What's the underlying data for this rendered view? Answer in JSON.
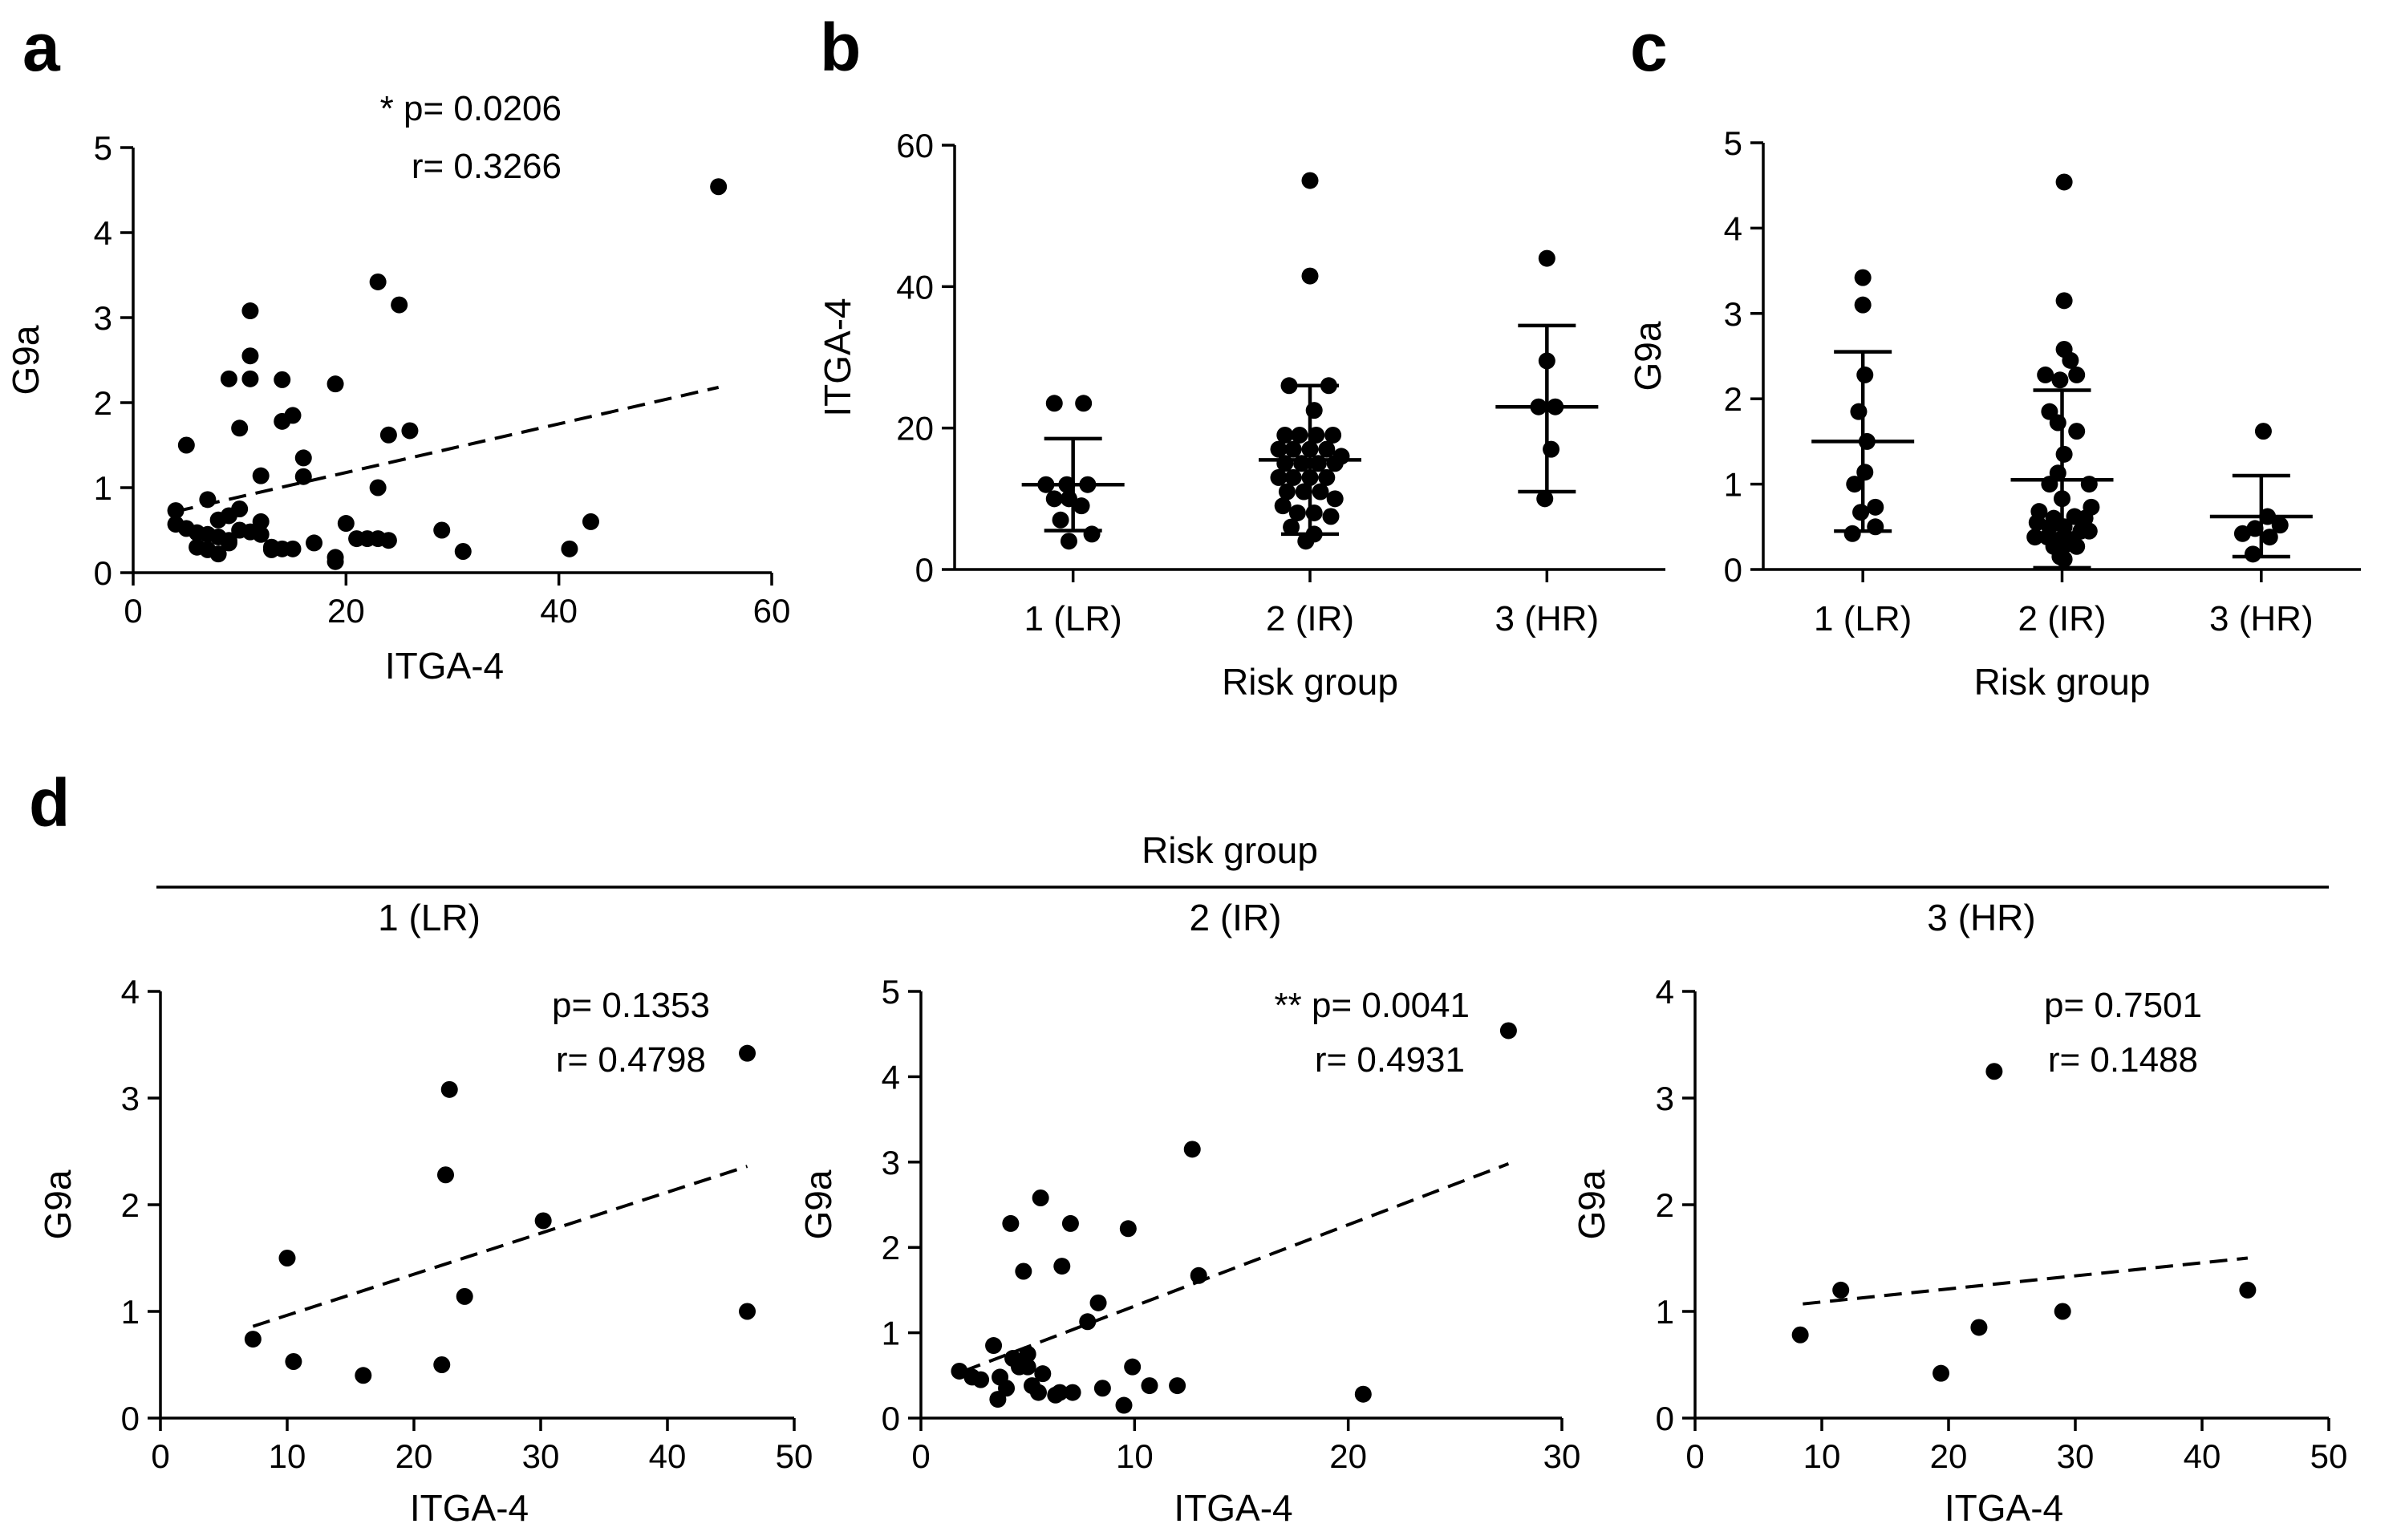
{
  "panels": [
    {
      "letter": "a"
    },
    {
      "letter": "b"
    },
    {
      "letter": "c"
    },
    {
      "letter": "d"
    }
  ],
  "d_header": {
    "title": "Risk group",
    "groups": [
      "1 (LR)",
      "2 (IR)",
      "3 (HR)"
    ]
  },
  "chart_data": [
    {
      "id": "a",
      "type": "scatter",
      "xlabel": "ITGA-4",
      "ylabel": "G9a",
      "xlim": [
        0,
        60
      ],
      "ylim": [
        0,
        5
      ],
      "xticks": [
        0,
        20,
        40,
        60
      ],
      "yticks": [
        0,
        1,
        2,
        3,
        4,
        5
      ],
      "annotation": [
        "* p= 0.0206",
        "r= 0.3266"
      ],
      "fit": {
        "x": [
          4,
          55
        ],
        "y": [
          0.72,
          2.18
        ]
      },
      "points": [
        [
          4,
          0.73
        ],
        [
          4,
          0.57
        ],
        [
          5,
          0.52
        ],
        [
          5,
          1.5
        ],
        [
          6,
          0.47
        ],
        [
          6,
          0.3
        ],
        [
          7,
          0.27
        ],
        [
          7,
          0.86
        ],
        [
          7,
          0.45
        ],
        [
          8,
          0.42
        ],
        [
          8,
          0.22
        ],
        [
          8,
          0.62
        ],
        [
          9,
          0.35
        ],
        [
          9,
          2.28
        ],
        [
          9,
          0.67
        ],
        [
          9,
          0.38
        ],
        [
          10,
          1.7
        ],
        [
          10,
          0.5
        ],
        [
          10,
          0.75
        ],
        [
          11,
          0.48
        ],
        [
          11,
          3.08
        ],
        [
          11,
          2.55
        ],
        [
          11,
          2.28
        ],
        [
          12,
          0.6
        ],
        [
          12,
          1.14
        ],
        [
          12,
          0.45
        ],
        [
          13,
          0.3
        ],
        [
          13,
          0.27
        ],
        [
          14,
          1.78
        ],
        [
          14,
          2.27
        ],
        [
          14,
          0.28
        ],
        [
          15,
          1.85
        ],
        [
          15,
          0.28
        ],
        [
          16,
          1.13
        ],
        [
          16,
          1.35
        ],
        [
          17,
          0.35
        ],
        [
          19,
          2.22
        ],
        [
          19,
          0.18
        ],
        [
          19,
          0.13
        ],
        [
          20,
          0.58
        ],
        [
          21,
          0.4
        ],
        [
          22,
          0.4
        ],
        [
          23,
          3.42
        ],
        [
          23,
          1.0
        ],
        [
          23,
          0.4
        ],
        [
          24,
          1.62
        ],
        [
          24,
          0.38
        ],
        [
          25,
          3.15
        ],
        [
          26,
          1.67
        ],
        [
          29,
          0.5
        ],
        [
          31,
          0.25
        ],
        [
          41,
          0.28
        ],
        [
          43,
          0.6
        ],
        [
          55,
          4.54
        ]
      ]
    },
    {
      "id": "b",
      "type": "dot-plot",
      "xlabel": "Risk group",
      "ylabel": "ITGA-4",
      "categories": [
        "1 (LR)",
        "2 (IR)",
        "3 (HR)"
      ],
      "ylim": [
        0,
        60
      ],
      "yticks": [
        0,
        20,
        40,
        60
      ],
      "summary": [
        {
          "mean": 12,
          "low": 5.5,
          "high": 18.5
        },
        {
          "mean": 15.5,
          "low": 5,
          "high": 26
        },
        {
          "mean": 23,
          "low": 11,
          "high": 34.5
        }
      ],
      "groups": [
        [
          [
            -0.9,
            23.5
          ],
          [
            0.5,
            23.5
          ],
          [
            -1.3,
            12
          ],
          [
            -0.3,
            12
          ],
          [
            0.7,
            12
          ],
          [
            -0.9,
            10
          ],
          [
            -0.2,
            10
          ],
          [
            0.4,
            9
          ],
          [
            -0.6,
            7
          ],
          [
            0.9,
            5
          ],
          [
            -0.2,
            4
          ]
        ],
        [
          [
            0,
            55
          ],
          [
            0,
            41.5
          ],
          [
            -1,
            26
          ],
          [
            0.9,
            26
          ],
          [
            0.2,
            22.5
          ],
          [
            -1.2,
            19
          ],
          [
            -0.5,
            19
          ],
          [
            0.3,
            19
          ],
          [
            1.1,
            19
          ],
          [
            -1.5,
            17
          ],
          [
            -0.8,
            17
          ],
          [
            0,
            17
          ],
          [
            0.8,
            17
          ],
          [
            1.5,
            16
          ],
          [
            -1.2,
            15
          ],
          [
            -0.4,
            15
          ],
          [
            0.4,
            15
          ],
          [
            1.2,
            15
          ],
          [
            -1.5,
            13
          ],
          [
            -0.8,
            13
          ],
          [
            0,
            13
          ],
          [
            0.8,
            13
          ],
          [
            -1.1,
            11
          ],
          [
            -0.3,
            11
          ],
          [
            0.5,
            11
          ],
          [
            1.2,
            10
          ],
          [
            -1.3,
            9
          ],
          [
            -0.6,
            8
          ],
          [
            0.2,
            8
          ],
          [
            1,
            7.5
          ],
          [
            -0.9,
            6
          ],
          [
            0.2,
            5
          ],
          [
            -0.2,
            4
          ]
        ],
        [
          [
            0,
            44
          ],
          [
            0,
            29.5
          ],
          [
            -0.4,
            23
          ],
          [
            0.4,
            23
          ],
          [
            0.2,
            17
          ],
          [
            -0.1,
            10
          ]
        ]
      ]
    },
    {
      "id": "c",
      "type": "dot-plot",
      "xlabel": "Risk group",
      "ylabel": "G9a",
      "categories": [
        "1 (LR)",
        "2 (IR)",
        "3 (HR)"
      ],
      "ylim": [
        0,
        5
      ],
      "yticks": [
        0,
        1,
        2,
        3,
        4,
        5
      ],
      "summary": [
        {
          "mean": 1.5,
          "low": 0.45,
          "high": 2.55
        },
        {
          "mean": 1.05,
          "low": 0.02,
          "high": 2.1
        },
        {
          "mean": 0.62,
          "low": 0.15,
          "high": 1.1
        }
      ],
      "groups": [
        [
          [
            0,
            3.42
          ],
          [
            0,
            3.1
          ],
          [
            0.1,
            2.28
          ],
          [
            -0.2,
            1.85
          ],
          [
            0.2,
            1.5
          ],
          [
            0.1,
            1.14
          ],
          [
            -0.4,
            1.0
          ],
          [
            0.6,
            0.73
          ],
          [
            -0.1,
            0.67
          ],
          [
            0.6,
            0.5
          ],
          [
            -0.5,
            0.42
          ]
        ],
        [
          [
            0.1,
            4.54
          ],
          [
            0.1,
            3.15
          ],
          [
            0.1,
            2.58
          ],
          [
            0.4,
            2.45
          ],
          [
            -0.8,
            2.28
          ],
          [
            0.7,
            2.28
          ],
          [
            -0.1,
            2.22
          ],
          [
            -0.6,
            1.85
          ],
          [
            -0.2,
            1.72
          ],
          [
            0.7,
            1.62
          ],
          [
            0.1,
            1.35
          ],
          [
            -0.2,
            1.13
          ],
          [
            -0.6,
            1.0
          ],
          [
            1.3,
            1.0
          ],
          [
            0,
            0.83
          ],
          [
            -1.1,
            0.68
          ],
          [
            1.4,
            0.73
          ],
          [
            -0.4,
            0.6
          ],
          [
            0.6,
            0.62
          ],
          [
            1.1,
            0.6
          ],
          [
            -1.2,
            0.55
          ],
          [
            -0.6,
            0.5
          ],
          [
            0.1,
            0.5
          ],
          [
            0.9,
            0.45
          ],
          [
            1.3,
            0.45
          ],
          [
            -1.3,
            0.38
          ],
          [
            -0.7,
            0.38
          ],
          [
            -0.1,
            0.35
          ],
          [
            0.5,
            0.35
          ],
          [
            0.1,
            0.28
          ],
          [
            -0.4,
            0.27
          ],
          [
            0.7,
            0.27
          ],
          [
            -0.1,
            0.15
          ],
          [
            0.1,
            0.12
          ]
        ],
        [
          [
            0.1,
            1.62
          ],
          [
            0.3,
            0.62
          ],
          [
            0.9,
            0.52
          ],
          [
            -0.3,
            0.48
          ],
          [
            -0.9,
            0.42
          ],
          [
            0.4,
            0.38
          ],
          [
            -0.4,
            0.18
          ]
        ]
      ]
    },
    {
      "id": "d1",
      "type": "scatter",
      "xlabel": "ITGA-4",
      "ylabel": "G9a",
      "xlim": [
        0,
        50
      ],
      "ylim": [
        0,
        4
      ],
      "xticks": [
        0,
        10,
        20,
        30,
        40,
        50
      ],
      "yticks": [
        0,
        1,
        2,
        3,
        4
      ],
      "annotation": [
        "p= 0.1353",
        "r= 0.4798"
      ],
      "fit": {
        "x": [
          7.3,
          46.3
        ],
        "y": [
          0.86,
          2.36
        ]
      },
      "points": [
        [
          7.3,
          0.74
        ],
        [
          10,
          1.5
        ],
        [
          10.5,
          0.53
        ],
        [
          16,
          0.4
        ],
        [
          22.2,
          0.5
        ],
        [
          22.5,
          2.28
        ],
        [
          22.8,
          3.08
        ],
        [
          24,
          1.14
        ],
        [
          30.2,
          1.85
        ],
        [
          46.3,
          3.42
        ],
        [
          46.3,
          1.0
        ]
      ]
    },
    {
      "id": "d2",
      "type": "scatter",
      "xlabel": "ITGA-4",
      "ylabel": "G9a",
      "xlim": [
        0,
        30
      ],
      "ylim": [
        0,
        5
      ],
      "xticks": [
        0,
        10,
        20,
        30
      ],
      "yticks": [
        0,
        1,
        2,
        3,
        4,
        5
      ],
      "annotation": [
        "** p= 0.0041",
        "r= 0.4931"
      ],
      "fit": {
        "x": [
          2,
          27.5
        ],
        "y": [
          0.55,
          2.98
        ]
      },
      "points": [
        [
          1.8,
          0.55
        ],
        [
          2.4,
          0.48
        ],
        [
          2.8,
          0.45
        ],
        [
          3.4,
          0.85
        ],
        [
          3.6,
          0.22
        ],
        [
          3.7,
          0.48
        ],
        [
          4,
          0.35
        ],
        [
          4.2,
          2.28
        ],
        [
          4.3,
          0.7
        ],
        [
          4.6,
          0.6
        ],
        [
          4.8,
          1.72
        ],
        [
          5,
          0.75
        ],
        [
          5,
          0.6
        ],
        [
          5.2,
          0.38
        ],
        [
          5.5,
          0.3
        ],
        [
          5.6,
          2.58
        ],
        [
          5.7,
          0.52
        ],
        [
          6.3,
          0.27
        ],
        [
          6.5,
          0.3
        ],
        [
          6.6,
          1.78
        ],
        [
          7,
          2.28
        ],
        [
          7.1,
          0.3
        ],
        [
          7.8,
          1.13
        ],
        [
          8.3,
          1.35
        ],
        [
          8.5,
          0.35
        ],
        [
          9.5,
          0.15
        ],
        [
          9.7,
          2.22
        ],
        [
          9.9,
          0.6
        ],
        [
          10.7,
          0.38
        ],
        [
          12,
          0.38
        ],
        [
          12.7,
          3.15
        ],
        [
          13,
          1.67
        ],
        [
          20.7,
          0.28
        ],
        [
          27.5,
          4.54
        ]
      ]
    },
    {
      "id": "d3",
      "type": "scatter",
      "xlabel": "ITGA-4",
      "ylabel": "G9a",
      "xlim": [
        0,
        50
      ],
      "ylim": [
        0,
        4
      ],
      "xticks": [
        0,
        10,
        20,
        30,
        40,
        50
      ],
      "yticks": [
        0,
        1,
        2,
        3,
        4
      ],
      "annotation": [
        "p= 0.7501",
        "r= 0.1488"
      ],
      "fit": {
        "x": [
          8.5,
          43.6
        ],
        "y": [
          1.07,
          1.5
        ]
      },
      "points": [
        [
          8.3,
          0.78
        ],
        [
          11.5,
          1.2
        ],
        [
          19.4,
          0.42
        ],
        [
          22.4,
          0.85
        ],
        [
          23.6,
          3.25
        ],
        [
          29,
          1.0
        ],
        [
          43.6,
          1.2
        ]
      ]
    }
  ]
}
